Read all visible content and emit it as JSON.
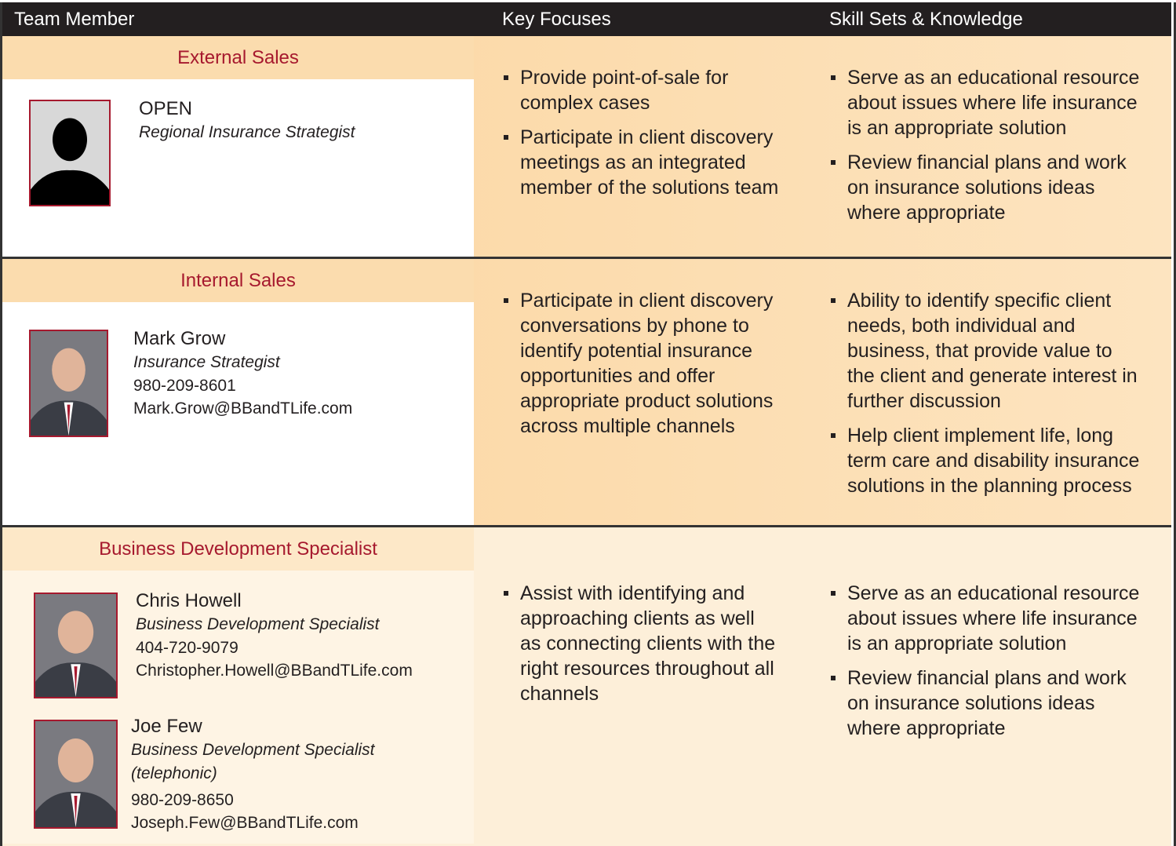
{
  "header": {
    "columns": [
      "Team Member",
      "Key Focuses",
      "Skill Sets & Knowledge"
    ]
  },
  "rows": [
    {
      "role": "External Sales",
      "members": [
        {
          "name": "OPEN",
          "title": "Regional Insurance Strategist"
        }
      ],
      "key_focuses": [
        "Provide point-of-sale for complex cases",
        "Participate in client discovery meetings as an integrated member of the solutions team"
      ],
      "skills": [
        "Serve as an educational resource about issues where life insurance is an appropriate solution",
        "Review financial plans and work on insurance solutions ideas where appropriate"
      ]
    },
    {
      "role": "Internal Sales",
      "members": [
        {
          "name": "Mark Grow",
          "title": "Insurance Strategist",
          "phone": "980-209-8601",
          "email": "Mark.Grow@BBandTLife.com"
        }
      ],
      "key_focuses": [
        "Participate in client discovery conversations by phone to identify potential insurance opportunities and offer appropriate product solutions across multiple channels"
      ],
      "skills": [
        "Ability to identify specific client needs, both individual and business, that provide value to the client and generate interest in further discussion",
        "Help client implement life, long term care and disability insurance solutions in the planning process"
      ]
    },
    {
      "role": "Business Development Specialist",
      "members": [
        {
          "name": "Chris Howell",
          "title": "Business Development Specialist",
          "phone": "404-720-9079",
          "email": "Christopher.Howell@BBandTLife.com"
        },
        {
          "name": "Joe Few",
          "title": "Business Development Specialist (telephonic)",
          "phone": "980-209-8650",
          "email": "Joseph.Few@BBandTLife.com"
        }
      ],
      "key_focuses": [
        "Assist with identifying and approaching clients as well as connecting clients with the right resources throughout all channels"
      ],
      "skills": [
        "Serve as an educational resource about issues where life insurance is an appropriate solution",
        "Review financial plans and work on insurance solutions ideas where appropriate"
      ]
    }
  ]
}
